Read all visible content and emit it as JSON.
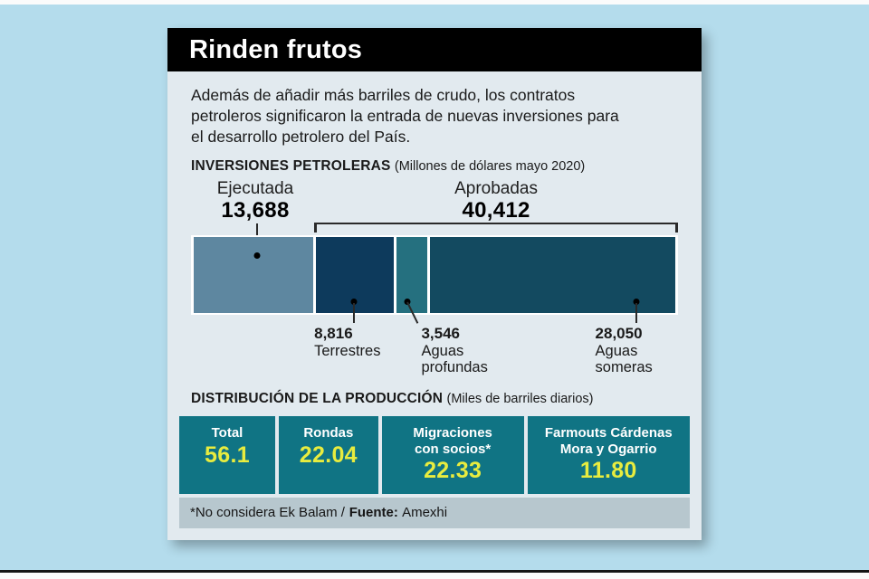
{
  "theme": {
    "page_bg": "#b4dcec",
    "card_bg": "#e2eaef",
    "title_bg": "#000000",
    "title_fg": "#ffffff",
    "ink": "#1a1a1a",
    "line": "#2a2a2a",
    "box_teal": "#107484",
    "value_yellow": "#e8ec3f",
    "footer_bg": "#b7c7ce"
  },
  "card": {
    "title": "Rinden frutos",
    "intro_lines": [
      "Además de añadir más barriles de crudo, los contratos",
      "petroleros significaron la entrada de nuevas inversiones para",
      "el desarrollo petrolero del País."
    ]
  },
  "chart_data": [
    {
      "type": "bar",
      "variant": "horizontal-stacked-proportional",
      "title": "INVERSIONES PETROLERAS",
      "subtitle": "(Millones de dólares mayo 2020)",
      "unit": "millones de dólares",
      "total": 54100,
      "groups": [
        {
          "label": "Ejecutada",
          "value": 13688,
          "display": "13,688"
        },
        {
          "label": "Aprobadas",
          "value": 40412,
          "display": "40,412"
        }
      ],
      "segments": [
        {
          "label": "Ejecutada",
          "value": 13688,
          "display": "13,688",
          "color": "#5e87a0",
          "group": "Ejecutada"
        },
        {
          "label": "Terrestres",
          "value": 8816,
          "display": "8,816",
          "color": "#0d3a5c",
          "group": "Aprobadas"
        },
        {
          "label": "Aguas profundas",
          "value": 3546,
          "display": "3,546",
          "color": "#25707f",
          "group": "Aprobadas"
        },
        {
          "label": "Aguas someras",
          "value": 28050,
          "display": "28,050",
          "color": "#134a60",
          "group": "Aprobadas"
        }
      ]
    },
    {
      "type": "table",
      "title": "DISTRIBUCIÓN DE LA PRODUCCIÓN",
      "subtitle": "(Miles de barriles diarios)",
      "unit": "miles de barriles diarios",
      "items": [
        {
          "label": "Total",
          "value": 56.1,
          "display": "56.1"
        },
        {
          "label": "Rondas",
          "value": 22.04,
          "display": "22.04"
        },
        {
          "label": "Migraciones con socios*",
          "value": 22.33,
          "display": "22.33"
        },
        {
          "label": "Farmouts Cárdenas Mora y Ogarrio",
          "value": 11.8,
          "display": "11.80"
        }
      ]
    }
  ],
  "footer": {
    "note": "*No considera Ek Balam /",
    "source_label": "Fuente:",
    "source_value": "Amexhi"
  }
}
